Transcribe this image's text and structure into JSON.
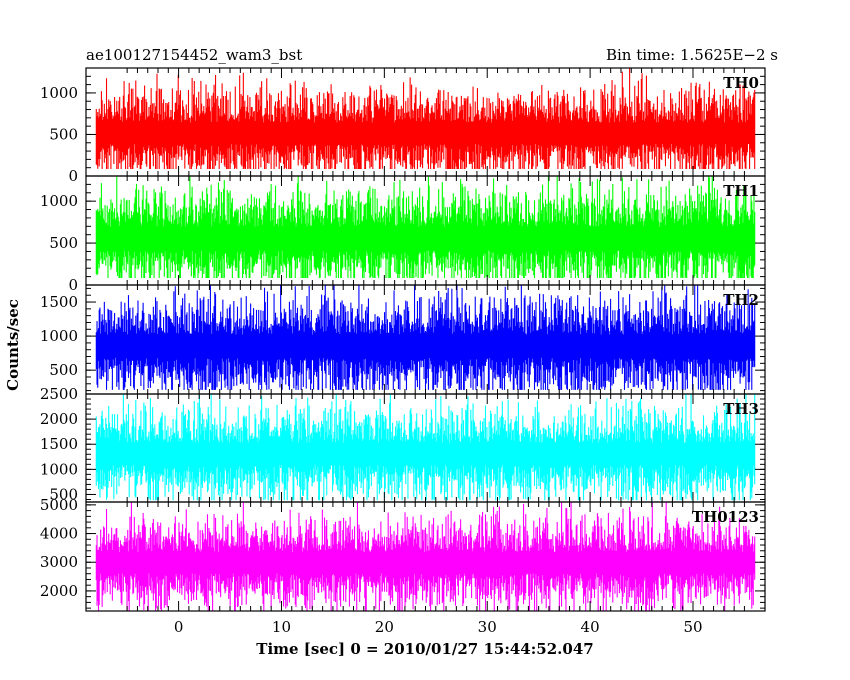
{
  "header": {
    "title": "ae100127154452_wam3_bst",
    "bin_time": "Bin time: 1.5625E−2 s"
  },
  "chart_data": {
    "type": "line",
    "xlabel": "Time [sec] 0 = 2010/01/27 15:44:52.047",
    "ylabel": "Counts/sec",
    "xlim": [
      -9,
      57
    ],
    "x_range_data": [
      -8,
      56
    ],
    "x_ticks": [
      0,
      10,
      20,
      30,
      40,
      50
    ],
    "bin_time_s": 0.015625,
    "panels": [
      {
        "name": "TH0",
        "color": "#ff0000",
        "ylim": [
          0,
          1300
        ],
        "yticks": [
          0,
          500,
          1000
        ],
        "mean": 520,
        "low": 120,
        "high": 1050
      },
      {
        "name": "TH1",
        "color": "#00ff00",
        "ylim": [
          0,
          1300
        ],
        "yticks": [
          0,
          500,
          1000
        ],
        "mean": 560,
        "low": 120,
        "high": 1150
      },
      {
        "name": "TH2",
        "color": "#0000ff",
        "ylim": [
          150,
          1750
        ],
        "yticks": [
          500,
          1000,
          1500
        ],
        "mean": 860,
        "low": 300,
        "high": 1550
      },
      {
        "name": "TH3",
        "color": "#00ffff",
        "ylim": [
          350,
          2500
        ],
        "yticks": [
          500,
          1000,
          1500,
          2000,
          2500
        ],
        "mean": 1320,
        "low": 550,
        "high": 2150
      },
      {
        "name": "TH0123",
        "color": "#ff00ff",
        "ylim": [
          1300,
          5100
        ],
        "yticks": [
          2000,
          3000,
          4000,
          5000
        ],
        "mean": 3000,
        "low": 1700,
        "high": 4400
      }
    ]
  }
}
